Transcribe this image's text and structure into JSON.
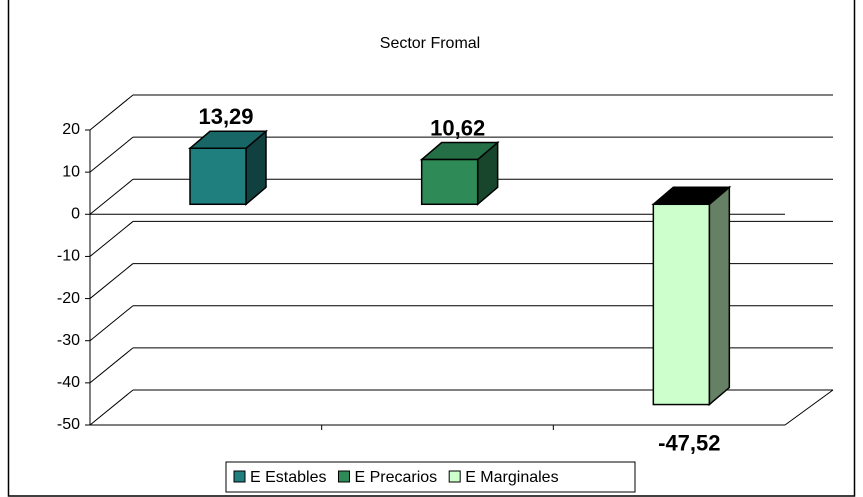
{
  "chart_data": {
    "type": "bar3d",
    "title": "Sector Fromal",
    "series": [
      {
        "name": "E Estables",
        "color": "#1f7f7f",
        "values": [
          13.29
        ],
        "value_labels": [
          "13,29"
        ]
      },
      {
        "name": "E Precarios",
        "color": "#2e8b57",
        "values": [
          10.62
        ],
        "value_labels": [
          "10,62"
        ]
      },
      {
        "name": "E Marginales",
        "color": "#ccffcc",
        "values": [
          -47.52
        ],
        "value_labels": [
          "-47,52"
        ]
      }
    ],
    "ylim": [
      -50,
      20
    ],
    "yticks": [
      -50,
      -40,
      -30,
      -20,
      -10,
      0,
      10,
      20
    ],
    "grid": true
  }
}
